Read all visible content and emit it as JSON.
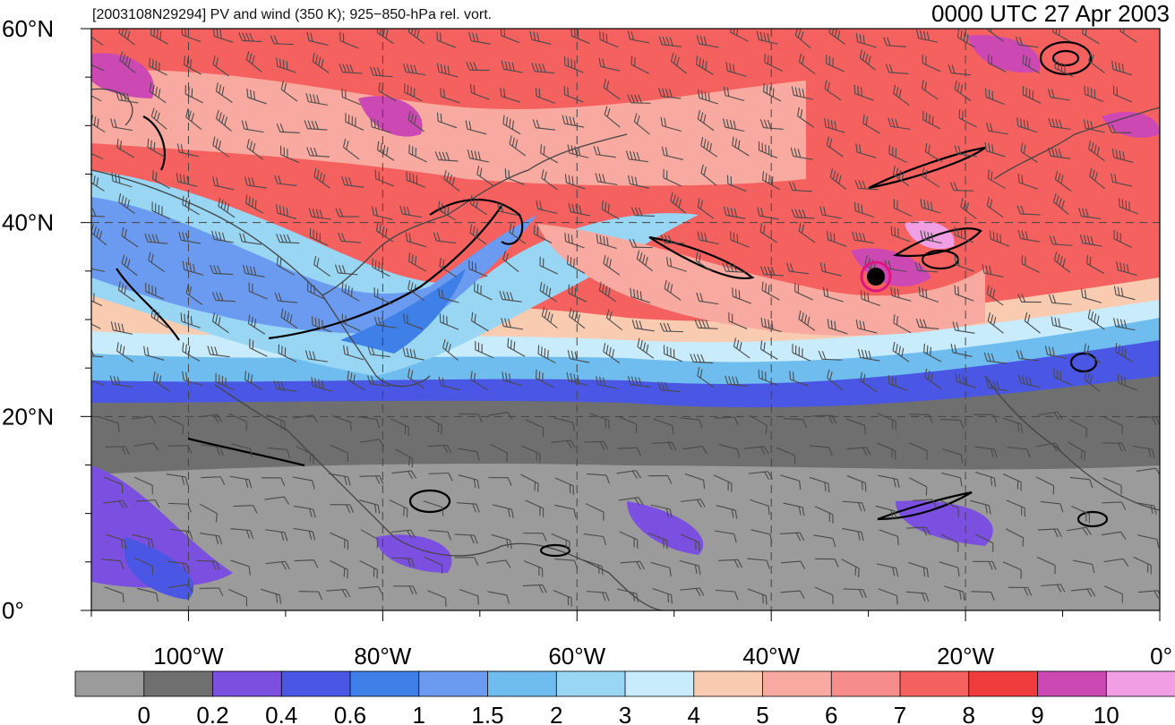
{
  "header": {
    "title_left": "[2003108N29294] PV and wind (350 K); 925−850-hPa rel. vort.",
    "title_right": "0000 UTC 27 Apr 2003"
  },
  "map": {
    "lat_labels": [
      "60°N",
      "40°N",
      "20°N",
      "0°"
    ],
    "lon_labels": [
      "100°W",
      "80°W",
      "60°W",
      "40°W",
      "20°W",
      "0°"
    ],
    "lon_range": [
      -110,
      0
    ],
    "lat_range": [
      0,
      60
    ]
  },
  "colorbar": {
    "colors": [
      "#9b9b9b",
      "#6f6f6f",
      "#7b4fe0",
      "#4a56e4",
      "#3f7fe8",
      "#6a9bf0",
      "#6fbcee",
      "#98d6f4",
      "#c8ecfb",
      "#f9ccb2",
      "#f8aaa0",
      "#f68d8c",
      "#f4615f",
      "#f03c3c",
      "#cc49b4",
      "#f29ee4"
    ],
    "labels": [
      "0",
      "0.2",
      "0.4",
      "0.6",
      "1",
      "1.5",
      "2",
      "3",
      "4",
      "5",
      "6",
      "7",
      "8",
      "9",
      "10"
    ]
  },
  "storm_marker_color": "#e0157e"
}
